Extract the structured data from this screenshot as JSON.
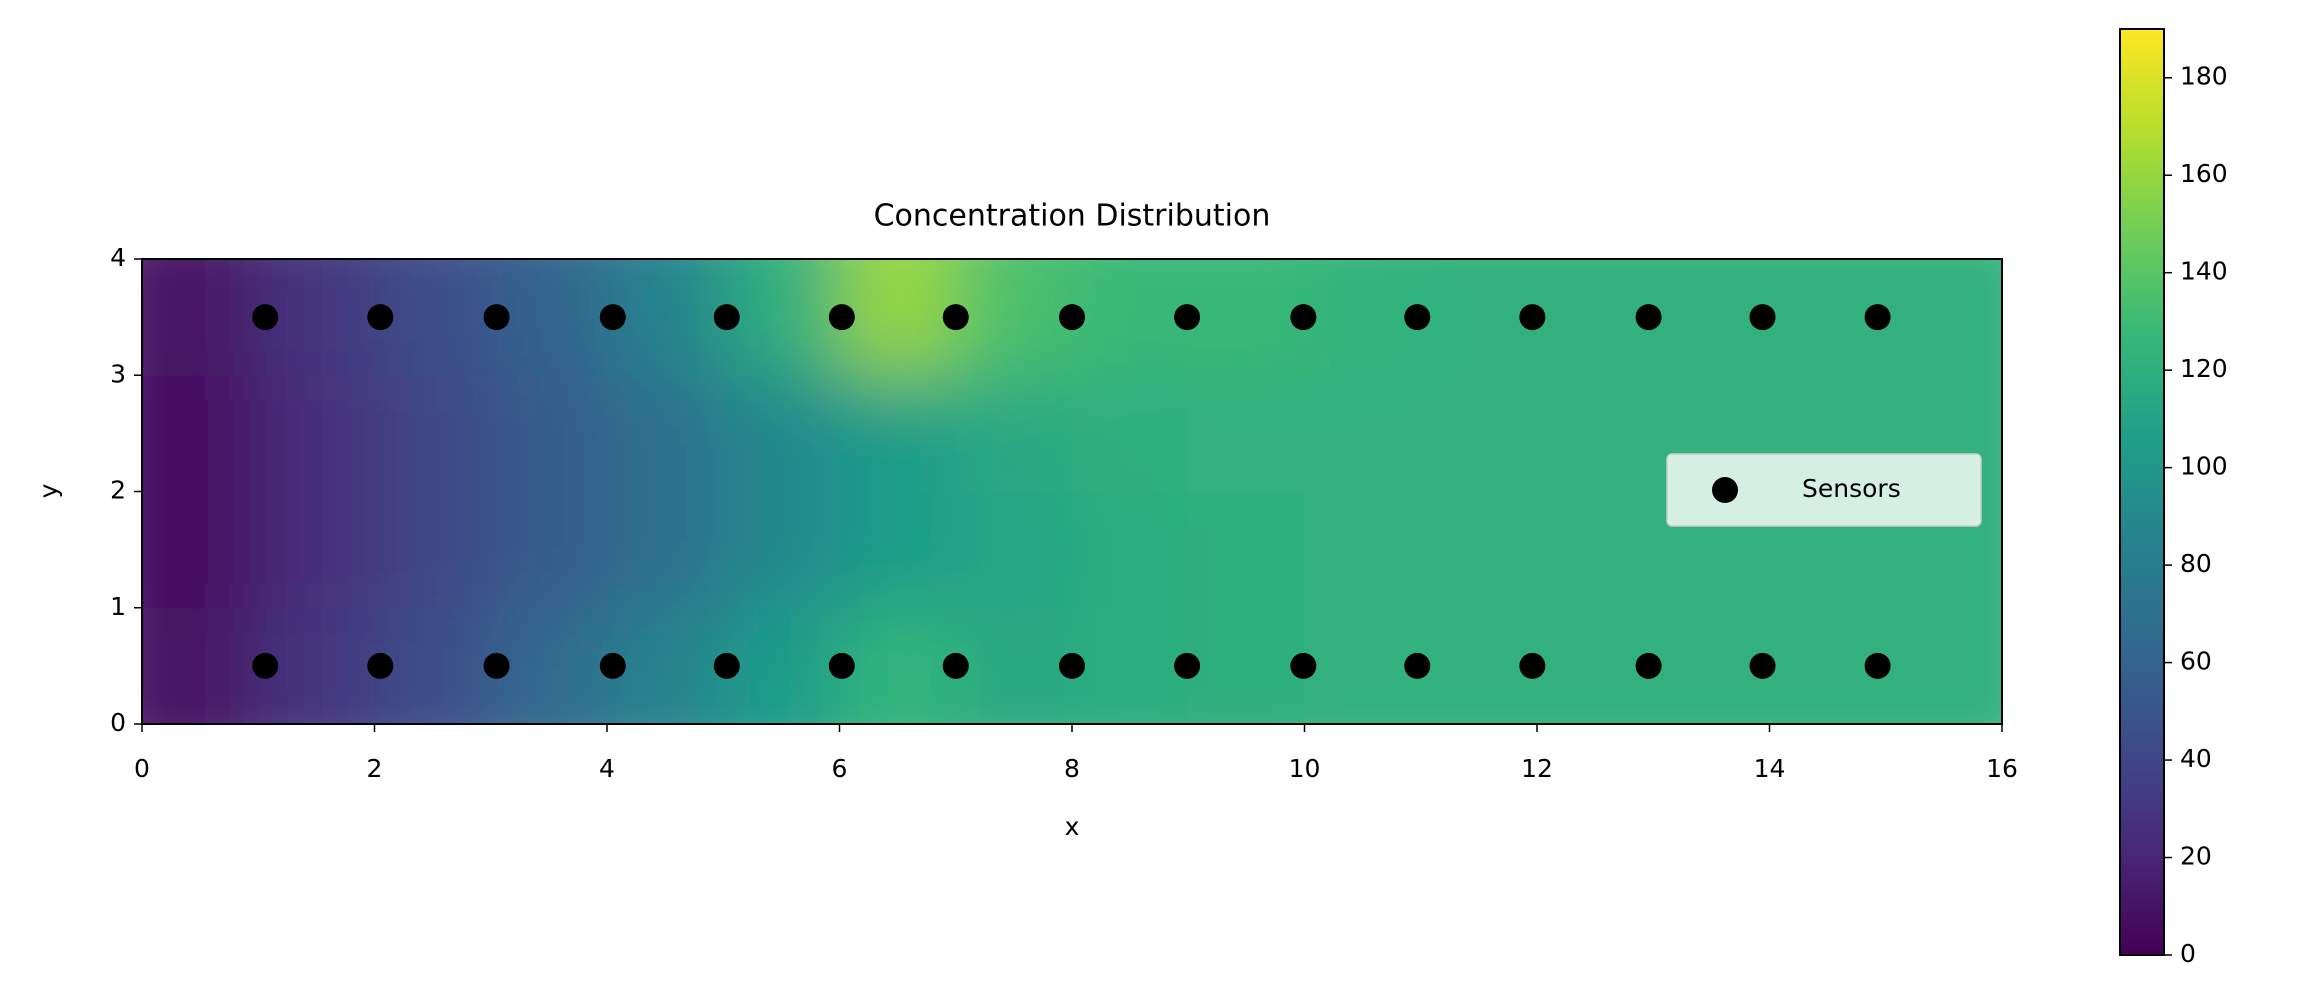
{
  "chart_data": {
    "type": "contour_scatter",
    "title": "Concentration Distribution",
    "x_label": "x",
    "y_label": "y",
    "xlim": [
      0,
      16
    ],
    "ylim": [
      0,
      4
    ],
    "xticks": [
      0,
      2,
      4,
      6,
      8,
      10,
      12,
      14,
      16
    ],
    "yticks": [
      0,
      1,
      2,
      3,
      4
    ],
    "colormap": "viridis",
    "clim": [
      0,
      190
    ],
    "colorbar_ticks": [
      0,
      20,
      40,
      60,
      80,
      100,
      120,
      140,
      160,
      180
    ],
    "field": {
      "x_edges": [
        0,
        1,
        2,
        3,
        4,
        5,
        6,
        7,
        8,
        9,
        10,
        11,
        12,
        13,
        14,
        15,
        16
      ],
      "y_edges": [
        0,
        1,
        2,
        3,
        4
      ],
      "values": [
        [
          10,
          30,
          45,
          65,
          85,
          105,
          125,
          115,
          118,
          120,
          122,
          122,
          122,
          122,
          122,
          122
        ],
        [
          8,
          25,
          40,
          55,
          70,
          90,
          105,
          112,
          118,
          120,
          122,
          122,
          122,
          122,
          122,
          122
        ],
        [
          8,
          25,
          40,
          55,
          70,
          90,
          105,
          115,
          120,
          122,
          122,
          122,
          122,
          122,
          122,
          122
        ],
        [
          10,
          30,
          45,
          60,
          85,
          120,
          160,
          135,
          128,
          128,
          124,
          122,
          122,
          122,
          122,
          122
        ]
      ]
    },
    "series": [
      {
        "name": "Sensors",
        "color": "#000000",
        "x": [
          1.06,
          2.05,
          3.05,
          4.05,
          5.03,
          6.02,
          7.0,
          8.0,
          8.99,
          9.99,
          10.97,
          11.96,
          12.96,
          13.94,
          14.93,
          1.06,
          2.05,
          3.05,
          4.05,
          5.03,
          6.02,
          7.0,
          8.0,
          8.99,
          9.99,
          10.97,
          11.96,
          12.96,
          13.94,
          14.93
        ],
        "values": [
          3.5,
          3.5,
          3.5,
          3.5,
          3.5,
          3.5,
          3.5,
          3.5,
          3.5,
          3.5,
          3.5,
          3.5,
          3.5,
          3.5,
          3.5,
          0.5,
          0.5,
          0.5,
          0.5,
          0.5,
          0.5,
          0.5,
          0.5,
          0.5,
          0.5,
          0.5,
          0.5,
          0.5,
          0.5,
          0.5
        ]
      }
    ],
    "legend": "center right"
  }
}
